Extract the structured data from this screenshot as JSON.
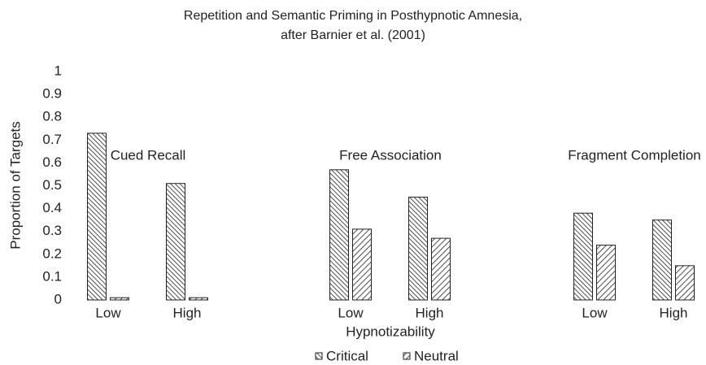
{
  "chart_data": {
    "type": "bar",
    "title": [
      "Repetition and Semantic Priming in Posthypnotic Amnesia,",
      "after Barnier et al. (2001)"
    ],
    "groups": [
      "Cued Recall",
      "Free Association",
      "Fragment Completion"
    ],
    "categories": [
      "Low",
      "High",
      "Low",
      "High",
      "Low",
      "High"
    ],
    "xlabel": "Hypnotizability",
    "ylabel": "Proportion of Targets",
    "ylim": [
      0,
      1
    ],
    "yticks": [
      0,
      0.1,
      0.2,
      0.3,
      0.4,
      0.5,
      0.6,
      0.7,
      0.8,
      0.9,
      1
    ],
    "grid": false,
    "legend": "bottom",
    "series": [
      {
        "name": "Critical",
        "color": "#222222",
        "values": [
          0.73,
          0.51,
          0.57,
          0.45,
          0.38,
          0.35
        ]
      },
      {
        "name": "Neutral",
        "color": "#222222",
        "values": [
          0.01,
          0.01,
          0.31,
          0.27,
          0.24,
          0.15
        ]
      }
    ]
  }
}
